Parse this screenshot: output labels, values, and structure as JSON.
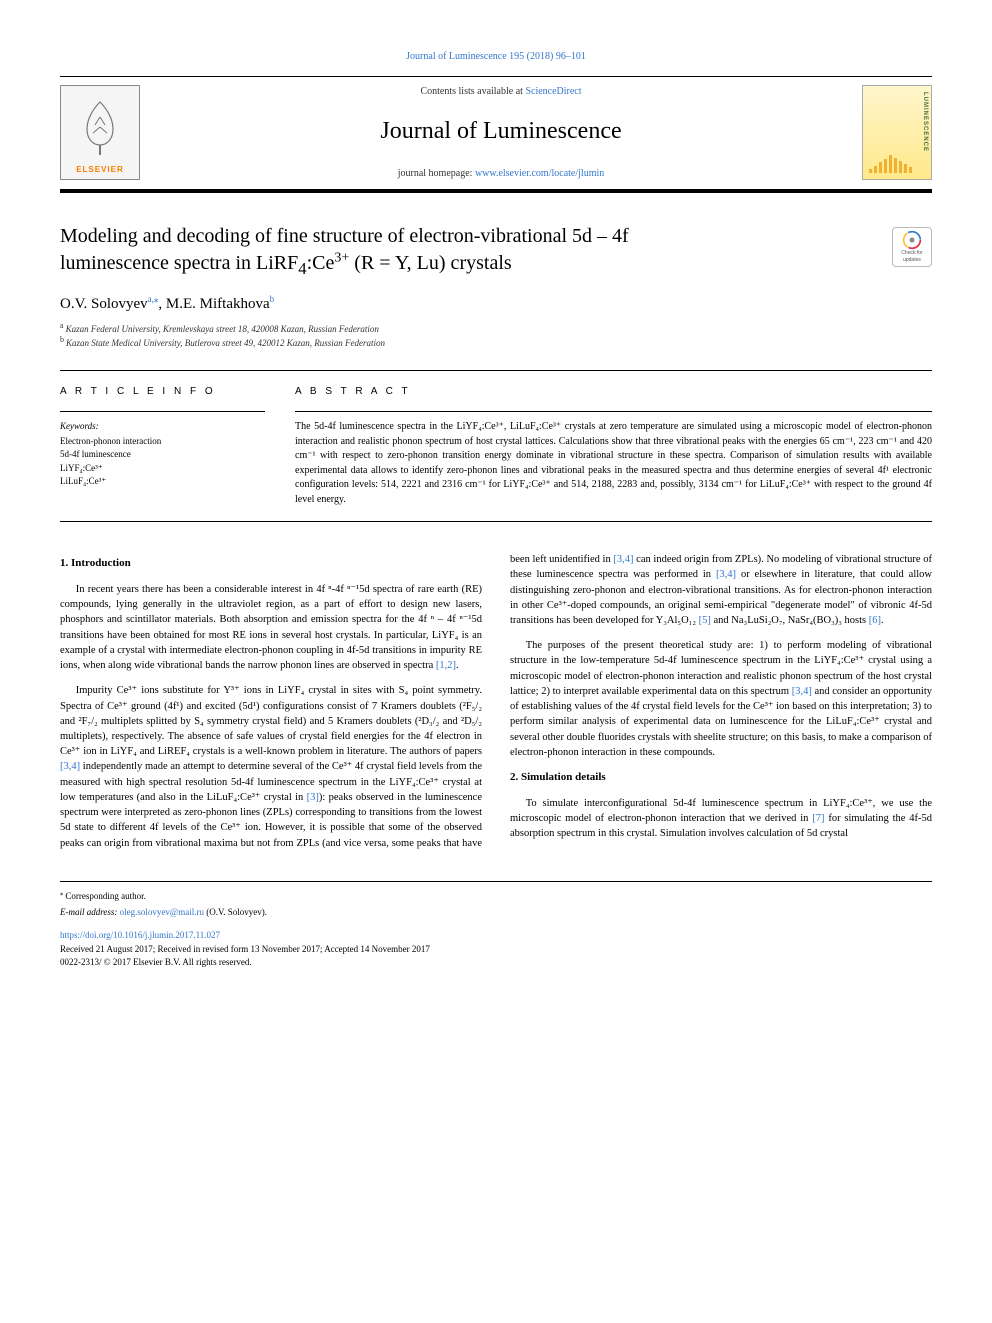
{
  "header": {
    "journal_ref_link": "Journal of Luminescence 195 (2018) 96–101",
    "contents_prefix": "Contents lists available at ",
    "sciencedirect": "ScienceDirect",
    "journal_title": "Journal of Luminescence",
    "homepage_prefix": "journal homepage: ",
    "homepage_url": "www.elsevier.com/locate/jlumin",
    "elsevier_brand": "ELSEVIER",
    "cover_sidebar_text": "LUMINESCENCE",
    "crossmark_line1": "Check for",
    "crossmark_line2": "updates"
  },
  "title": {
    "line1": "Modeling and decoding of fine structure of electron-vibrational 5d – 4f",
    "line2_prefix": "luminescence spectra in LiRF",
    "line2_sub": "4",
    "line2_mid": ":Ce",
    "line2_sup": "3+",
    "line2_suffix": " (R = Y, Lu) crystals"
  },
  "authors": {
    "a1_name": "O.V. Solovyev",
    "a1_sup": "a,",
    "a1_star": "⁎",
    "a2_name": ", M.E. Miftakhova",
    "a2_sup": "b"
  },
  "affiliations": {
    "a_sup": "a",
    "a_text": "Kazan Federal University, Kremlevskaya street 18, 420008 Kazan, Russian Federation",
    "b_sup": "b",
    "b_text": "Kazan State Medical University, Butlerova street 49, 420012 Kazan, Russian Federation"
  },
  "article_info": {
    "heading": "A R T I C L E  I N F O",
    "keywords_label": "Keywords:",
    "keywords": [
      "Electron-phonon interaction",
      "5d-4f luminescence",
      "LiYF₄:Ce³⁺",
      "LiLuF₄:Ce³⁺"
    ]
  },
  "abstract": {
    "heading": "A B S T R A C T",
    "text": "The 5d-4f luminescence spectra in the LiYF₄:Ce³⁺, LiLuF₄:Ce³⁺ crystals at zero temperature are simulated using a microscopic model of electron-phonon interaction and realistic phonon spectrum of host crystal lattices. Calculations show that three vibrational peaks with the energies 65 cm⁻¹, 223 cm⁻¹ and 420 cm⁻¹ with respect to zero-phonon transition energy dominate in vibrational structure in these spectra. Comparison of simulation results with available experimental data allows to identify zero-phonon lines and vibrational peaks in the measured spectra and thus determine energies of several 4f¹ electronic configuration levels: 514, 2221 and 2316 cm⁻¹ for LiYF₄:Ce³⁺ and 514, 2188, 2283 and, possibly, 3134 cm⁻¹ for LiLuF₄:Ce³⁺ with respect to the ground 4f level energy."
  },
  "body": {
    "section1_heading": "1. Introduction",
    "p1": "In recent years there has been a considerable interest in 4f ⁿ-4f ⁿ⁻¹5d spectra of rare earth (RE) compounds, lying generally in the ultraviolet region, as a part of effort to design new lasers, phosphors and scintillator materials. Both absorption and emission spectra for the 4f ⁿ – 4f ⁿ⁻¹5d transitions have been obtained for most RE ions in several host crystals. In particular, LiYF₄ is an example of a crystal with intermediate electron-phonon coupling in 4f-5d transitions in impurity RE ions, when along wide vibrational bands the narrow phonon lines are observed in spectra ",
    "p1_cite": "[1,2]",
    "p1_end": ".",
    "p2a": "Impurity Ce³⁺ ions substitute for Y³⁺ ions in LiYF₄ crystal in sites with S₄ point symmetry. Spectra of Ce³⁺ ground (4f¹) and excited (5d¹) configurations consist of 7 Kramers doublets (²F₅/₂ and ²F₇/₂ multiplets splitted by S₄ symmetry crystal field) and 5 Kramers doublets (²D₃/₂ and ²D₅/₂ multiplets), respectively. The absence of safe values of crystal field energies for the 4f electron in Ce³⁺ ion in LiYF₄ and LiREF₄ crystals is a well-known problem in literature. The authors of papers ",
    "p2_cite1": "[3,4]",
    "p2b": " independently made an attempt to determine several of the Ce³⁺ 4f crystal field levels from the measured with high spectral resolution 5d-4f luminescence spectrum in the LiYF₄:Ce³⁺ crystal at low temperatures (and also in the LiLuF₄:Ce³⁺ crystal in ",
    "p2_cite2": "[3]",
    "p2c": "): peaks observed in the luminescence spectrum were interpreted as zero-phonon lines (ZPLs) corresponding to transitions from the lowest 5d state to different 4f levels of the Ce³⁺ ion. However, it is possible that some of the observed peaks can origin from vibrational maxima but not from ZPLs (and vice versa, some peaks that have been left unidentified in ",
    "p2_cite3": "[3,4]",
    "p2d": " can indeed origin from ZPLs). No modeling of vibrational structure of these luminescence spectra was performed in ",
    "p2_cite4": "[3,4]",
    "p2e": " or elsewhere in literature, that could allow distinguishing zero-phonon and electron-vibrational transitions. As for electron-phonon interaction in other Ce³⁺-doped compounds, an original semi-empirical \"degenerate model\" of vibronic 4f-5d transitions has been developed for Y₃Al₅O₁₂ ",
    "p2_cite5": "[5]",
    "p2f": " and Na₃LuSi₂O₇, NaSr₄(BO₃)₃ hosts ",
    "p2_cite6": "[6]",
    "p2g": ".",
    "p3a": "The purposes of the present theoretical study are: 1) to perform modeling of vibrational structure in the low-temperature 5d-4f luminescence spectrum in the LiYF₄:Ce³⁺ crystal using a microscopic model of electron-phonon interaction and realistic phonon spectrum of the host crystal lattice; 2) to interpret available experimental data on this spectrum ",
    "p3_cite1": "[3,4]",
    "p3b": " and consider an opportunity of establishing values of the 4f crystal field levels for the Ce³⁺ ion based on this interpretation; 3) to perform similar analysis of experimental data on luminescence for the LiLuF₄:Ce³⁺ crystal and several other double fluorides crystals with sheelite structure; on this basis, to make a comparison of electron-phonon interaction in these compounds.",
    "section2_heading": "2. Simulation details",
    "p4a": "To simulate interconfigurational 5d-4f luminescence spectrum in LiYF₄:Ce³⁺, we use the microscopic model of electron-phonon interaction that we derived in ",
    "p4_cite1": "[7]",
    "p4b": " for simulating the 4f-5d absorption spectrum in this crystal. Simulation involves calculation of 5d crystal"
  },
  "footer": {
    "corr_mark": "⁎",
    "corr_text": " Corresponding author.",
    "email_label": "E-mail address: ",
    "email": "oleg.solovyev@mail.ru",
    "email_suffix": " (O.V. Solovyev).",
    "doi": "https://doi.org/10.1016/j.jlumin.2017.11.027",
    "history": "Received 21 August 2017; Received in revised form 13 November 2017; Accepted 14 November 2017",
    "copyright": "0022-2313/ © 2017 Elsevier B.V. All rights reserved."
  },
  "colors": {
    "link": "#3377cc",
    "elsevier_orange": "#ff7a00",
    "cover_bg_top": "#fff6cc",
    "cover_bg_bottom": "#ffe98a",
    "cover_text": "#4a6d3a",
    "cover_bar": "#f0b030",
    "crossmark_ring1": "#e03040",
    "crossmark_ring2": "#ffc030",
    "crossmark_ring3": "#3377cc",
    "text": "#000000",
    "bg": "#ffffff"
  },
  "cover_bars_heights": [
    4,
    7,
    11,
    14,
    18,
    15,
    12,
    9,
    6
  ]
}
